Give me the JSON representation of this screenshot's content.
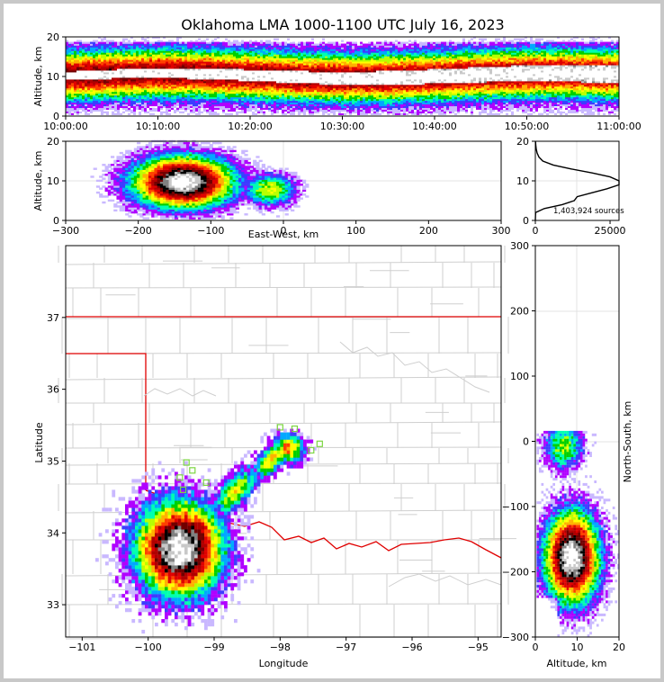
{
  "chart_data": [
    {
      "type": "heatmap",
      "panel": "time-altitude",
      "title": "Oklahoma LMA 1000-1100 UTC July 16, 2023",
      "xlabel": "",
      "ylabel": "Altitude, km",
      "xticks": [
        "10:00:00",
        "10:10:00",
        "10:20:00",
        "10:30:00",
        "10:40:00",
        "10:50:00",
        "11:00:00"
      ],
      "yticks": [
        "0",
        "10",
        "20"
      ],
      "xlim": [
        "10:00:00",
        "11:00:00"
      ],
      "ylim": [
        0,
        20
      ]
    },
    {
      "type": "heatmap",
      "panel": "east-west-altitude",
      "xlabel": "East-West, km",
      "ylabel": "Altitude, km",
      "xticks": [
        "−300",
        "−200",
        "−100",
        "0",
        "100",
        "200",
        "300"
      ],
      "yticks": [
        "0",
        "10",
        "20"
      ],
      "xlim": [
        -300,
        300
      ],
      "ylim": [
        0,
        20
      ]
    },
    {
      "type": "line",
      "panel": "altitude-histogram",
      "xticks": [
        "0",
        "25000"
      ],
      "yticks": [
        "0",
        "10",
        "20"
      ],
      "xlim": [
        0,
        28000
      ],
      "ylim": [
        0,
        20
      ],
      "profile_alt_km": [
        0,
        2,
        3,
        4,
        5,
        6,
        7,
        8,
        9,
        10,
        11,
        12,
        13,
        14,
        15,
        16,
        17,
        18,
        19,
        20
      ],
      "profile_counts": [
        0,
        100,
        3000,
        9000,
        13000,
        14000,
        19000,
        24000,
        28000,
        28000,
        25000,
        19000,
        12000,
        6000,
        2500,
        1200,
        600,
        300,
        150,
        60
      ],
      "annotation": "1,403,924 sources"
    },
    {
      "type": "heatmap",
      "panel": "plan-view",
      "xlabel": "Longitude",
      "ylabel": "Latitude",
      "xticks": [
        "−101",
        "−100",
        "−99",
        "−98",
        "−97",
        "−96",
        "−95"
      ],
      "yticks": [
        "33",
        "34",
        "35",
        "36",
        "37"
      ],
      "xlim": [
        -101.25,
        -94.65
      ],
      "ylim": [
        32.55,
        38.0
      ]
    },
    {
      "type": "heatmap",
      "panel": "altitude-north-south",
      "xlabel": "Altitude, km",
      "ylabel": "North-South, km",
      "xticks": [
        "0",
        "10",
        "20"
      ],
      "yticks": [
        "−300",
        "−200",
        "−100",
        "0",
        "100",
        "200",
        "300"
      ],
      "xlim": [
        0,
        20
      ],
      "ylim": [
        -300,
        300
      ]
    }
  ],
  "stations": [
    [
      -98.0,
      35.47
    ],
    [
      -97.78,
      35.45
    ],
    [
      -97.4,
      35.24
    ],
    [
      -97.53,
      35.15
    ],
    [
      -99.42,
      34.98
    ],
    [
      -99.33,
      34.87
    ],
    [
      -99.52,
      34.77
    ],
    [
      -99.12,
      34.7
    ],
    [
      -99.47,
      34.6
    ]
  ],
  "colors": {
    "state_line": "#e00000",
    "county_line": "#cfcfcf",
    "station": "#7cd642",
    "colormap": [
      "#ffffff",
      "#c9b8ff",
      "#b000ff",
      "#3c3cff",
      "#00a8ff",
      "#00ffb0",
      "#00d000",
      "#b8ff00",
      "#ffff00",
      "#ffb000",
      "#ff4000",
      "#e00000",
      "#b00000",
      "#700000",
      "#000000",
      "#808080",
      "#c8c8c8",
      "#ffffff"
    ]
  }
}
